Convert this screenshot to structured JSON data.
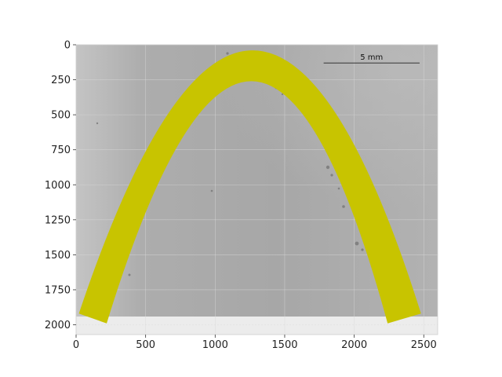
{
  "chart_data": {
    "type": "image",
    "title": "",
    "xlabel": "",
    "ylabel": "",
    "xlim": [
      0,
      2600
    ],
    "ylim": [
      2070,
      0
    ],
    "image_extent": {
      "width": 2600,
      "height": 1940
    },
    "x_ticks": [
      0,
      500,
      1000,
      1500,
      2000,
      2500
    ],
    "y_ticks": [
      0,
      250,
      500,
      750,
      1000,
      1250,
      1500,
      1750,
      2000
    ],
    "grid": true,
    "overlay": {
      "name": "arch-band",
      "shape": "parabola",
      "color": "#c8c400",
      "outer_curve": [
        [
          20,
          1920
        ],
        [
          1290,
          40
        ],
        [
          2480,
          1920
        ]
      ],
      "inner_curve": [
        [
          1290,
          260
        ],
        [
          2240,
          1990
        ],
        [
          220,
          1990
        ]
      ]
    },
    "scale_bar": {
      "label": "5 mm",
      "x_start": 1780,
      "x_end": 2470,
      "y": 130
    }
  }
}
